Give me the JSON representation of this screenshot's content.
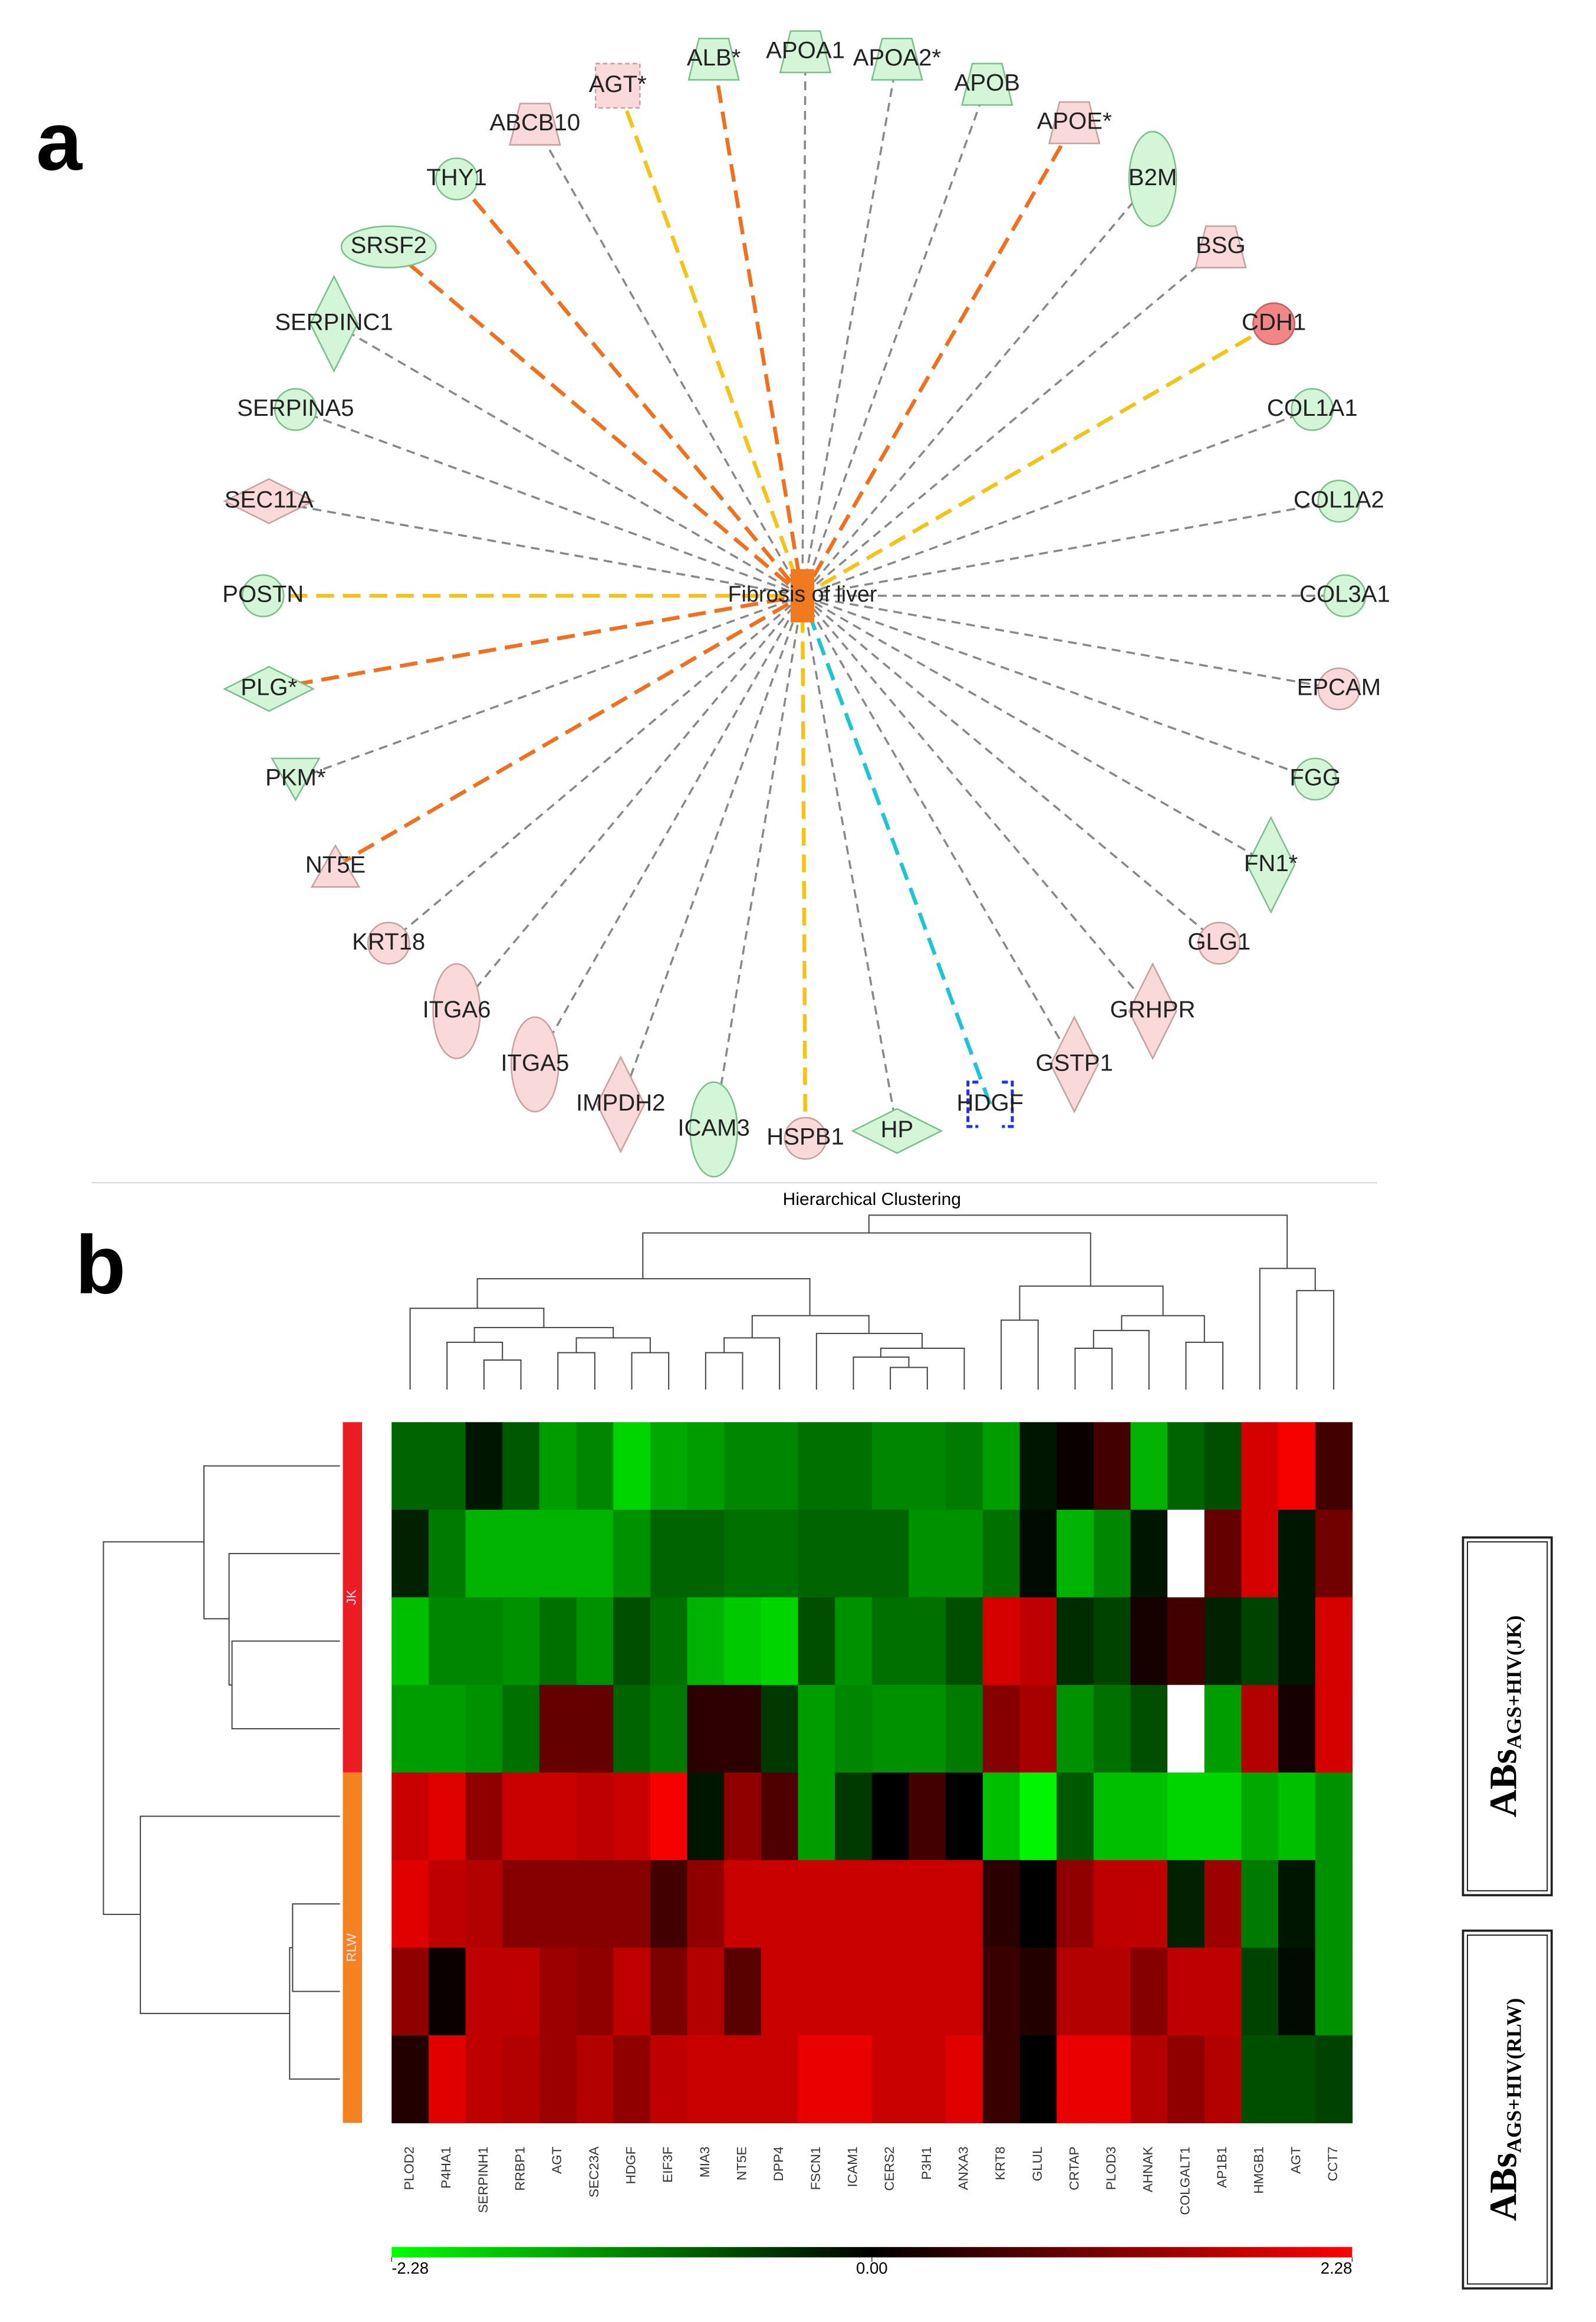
{
  "panel_a": {
    "label": "a",
    "center": "Fibrosis of liver",
    "nodes": [
      {
        "label": "AGT*",
        "shape": "square-dashed",
        "fill": "pink",
        "edge": "yellow"
      },
      {
        "label": "ALB*",
        "shape": "trapezoid",
        "fill": "green",
        "edge": "orange"
      },
      {
        "label": "APOA1",
        "shape": "trapezoid",
        "fill": "green",
        "edge": "gray"
      },
      {
        "label": "APOA2*",
        "shape": "trapezoid",
        "fill": "green",
        "edge": "gray"
      },
      {
        "label": "APOB",
        "shape": "trapezoid",
        "fill": "green",
        "edge": "gray"
      },
      {
        "label": "APOE*",
        "shape": "trapezoid",
        "fill": "pink",
        "edge": "orange"
      },
      {
        "label": "B2M",
        "shape": "ellipse-v",
        "fill": "green",
        "edge": "gray"
      },
      {
        "label": "BSG",
        "shape": "trapezoid",
        "fill": "pink",
        "edge": "gray"
      },
      {
        "label": "CDH1",
        "shape": "circle",
        "fill": "red",
        "edge": "yellow"
      },
      {
        "label": "COL1A1",
        "shape": "circle",
        "fill": "green",
        "edge": "gray"
      },
      {
        "label": "COL1A2",
        "shape": "circle",
        "fill": "green",
        "edge": "gray"
      },
      {
        "label": "COL3A1",
        "shape": "circle",
        "fill": "green",
        "edge": "gray"
      },
      {
        "label": "EPCAM",
        "shape": "circle",
        "fill": "pink",
        "edge": "gray"
      },
      {
        "label": "FGG",
        "shape": "circle",
        "fill": "green",
        "edge": "gray"
      },
      {
        "label": "FN1*",
        "shape": "diamond-v",
        "fill": "green",
        "edge": "gray"
      },
      {
        "label": "GLG1",
        "shape": "circle",
        "fill": "pink",
        "edge": "gray"
      },
      {
        "label": "GRHPR",
        "shape": "diamond-v",
        "fill": "pink",
        "edge": "gray"
      },
      {
        "label": "GSTP1",
        "shape": "diamond-v",
        "fill": "pink",
        "edge": "gray"
      },
      {
        "label": "HDGF",
        "shape": "square-blue",
        "fill": "none",
        "edge": "cyan"
      },
      {
        "label": "HP",
        "shape": "diamond-h",
        "fill": "green",
        "edge": "gray"
      },
      {
        "label": "HSPB1",
        "shape": "circle",
        "fill": "pink",
        "edge": "yellow"
      },
      {
        "label": "ICAM3",
        "shape": "ellipse-v",
        "fill": "green",
        "edge": "gray"
      },
      {
        "label": "IMPDH2",
        "shape": "diamond-v",
        "fill": "pink",
        "edge": "gray"
      },
      {
        "label": "ITGA5",
        "shape": "ellipse-v",
        "fill": "pink",
        "edge": "gray"
      },
      {
        "label": "ITGA6",
        "shape": "ellipse-v",
        "fill": "pink",
        "edge": "gray"
      },
      {
        "label": "KRT18",
        "shape": "circle",
        "fill": "pink",
        "edge": "gray"
      },
      {
        "label": "NT5E",
        "shape": "triangle",
        "fill": "pink",
        "edge": "orange"
      },
      {
        "label": "PKM*",
        "shape": "triangle-down",
        "fill": "green",
        "edge": "gray"
      },
      {
        "label": "PLG*",
        "shape": "diamond-h",
        "fill": "green",
        "edge": "orange"
      },
      {
        "label": "POSTN",
        "shape": "circle",
        "fill": "green",
        "edge": "yellow"
      },
      {
        "label": "SEC11A",
        "shape": "diamond-h",
        "fill": "pink",
        "edge": "gray"
      },
      {
        "label": "SERPINA5",
        "shape": "circle",
        "fill": "green",
        "edge": "gray"
      },
      {
        "label": "SERPINC1",
        "shape": "diamond-v",
        "fill": "green",
        "edge": "gray"
      },
      {
        "label": "SRSF2",
        "shape": "ellipse-h",
        "fill": "green",
        "edge": "orange"
      },
      {
        "label": "THY1",
        "shape": "circle",
        "fill": "green",
        "edge": "orange"
      },
      {
        "label": "ABCB10",
        "shape": "trapezoid",
        "fill": "pink",
        "edge": "gray"
      }
    ]
  },
  "chart_data": {
    "type": "heatmap",
    "panel_label": "b",
    "title": "Hierarchical Clustering",
    "categories": [
      "PLOD2",
      "P4HA1",
      "SERPINH1",
      "RRBP1",
      "AGT",
      "SEC23A",
      "HDGF",
      "EIF3F",
      "MIA3",
      "NT5E",
      "DPP4",
      "FSCN1",
      "ICAM1",
      "CERS2",
      "P3H1",
      "ANXA3",
      "KRT8",
      "GLUL",
      "CRTAP",
      "PLOD3",
      "AHNAK",
      "COLGALT1",
      "AP1B1",
      "HMGB1",
      "AGT",
      "CCT7"
    ],
    "groups": [
      {
        "name": "JK",
        "color": "#ec1c24"
      },
      {
        "name": "RLW",
        "color": "#f58220"
      }
    ],
    "values": [
      [
        -0.9,
        -0.9,
        -0.2,
        -0.8,
        -1.4,
        -1.2,
        -1.9,
        -1.5,
        -1.4,
        -1.2,
        -1.2,
        -1.0,
        -1.0,
        -1.2,
        -1.2,
        -1.1,
        -1.4,
        -0.2,
        0.1,
        0.6,
        -1.6,
        -0.9,
        -0.7,
        1.9,
        2.2,
        0.6
      ],
      [
        -0.3,
        -1.1,
        -1.6,
        -1.6,
        -1.6,
        -1.6,
        -1.3,
        -0.9,
        -0.9,
        -1.0,
        -1.0,
        -0.9,
        -0.9,
        -0.9,
        -1.3,
        -1.3,
        -1.0,
        -0.1,
        -1.6,
        -1.2,
        -0.2,
        null,
        0.9,
        1.9,
        -0.2,
        1.0
      ],
      [
        -1.7,
        -1.2,
        -1.2,
        -1.3,
        -1.0,
        -1.3,
        -0.7,
        -1.0,
        -1.6,
        -1.8,
        -1.9,
        -0.7,
        -1.3,
        -1.0,
        -1.0,
        -0.7,
        1.9,
        1.7,
        -0.4,
        -0.6,
        0.2,
        0.6,
        -0.3,
        -0.6,
        -0.2,
        1.9
      ],
      [
        -1.4,
        -1.4,
        -1.3,
        -1.0,
        0.9,
        0.9,
        -0.9,
        -1.1,
        0.4,
        0.4,
        -0.5,
        -1.4,
        -1.2,
        -1.3,
        -1.3,
        -1.1,
        1.2,
        1.5,
        -1.3,
        -1.0,
        -0.7,
        null,
        -1.4,
        1.6,
        0.2,
        1.9
      ],
      [
        1.8,
        2.0,
        1.3,
        1.8,
        1.8,
        1.7,
        1.8,
        2.2,
        -0.2,
        1.3,
        0.7,
        -1.4,
        -0.5,
        0.0,
        0.6,
        0.0,
        -1.7,
        -2.2,
        -0.8,
        -1.7,
        -1.7,
        -1.9,
        -1.9,
        -1.5,
        -1.7,
        -1.3
      ],
      [
        2.0,
        1.7,
        1.6,
        1.2,
        1.2,
        1.2,
        1.2,
        0.6,
        1.3,
        1.8,
        1.8,
        1.8,
        1.8,
        1.8,
        1.8,
        1.8,
        0.4,
        0.0,
        1.3,
        1.7,
        1.7,
        -0.3,
        1.4,
        -1.1,
        -0.2,
        -1.3
      ],
      [
        1.3,
        0.1,
        1.7,
        1.7,
        1.4,
        1.3,
        1.7,
        1.1,
        1.6,
        0.8,
        1.8,
        1.8,
        1.8,
        1.8,
        1.8,
        1.8,
        0.5,
        0.3,
        1.6,
        1.6,
        1.2,
        1.7,
        1.7,
        -0.6,
        -0.1,
        -1.3
      ],
      [
        0.3,
        2.0,
        1.7,
        1.6,
        1.4,
        1.6,
        1.3,
        1.7,
        1.8,
        1.8,
        1.8,
        2.1,
        2.1,
        1.8,
        1.8,
        2.0,
        0.5,
        0.0,
        2.1,
        2.1,
        1.6,
        1.3,
        1.6,
        -0.7,
        -0.7,
        -0.6
      ]
    ],
    "colorbar": {
      "lim": [
        -2.28,
        2.28
      ],
      "ticks": [
        -2.28,
        {
          "value": 0,
          "label": "0.00"
        },
        2.28
      ]
    },
    "side_labels": [
      {
        "main": "ABs",
        "sub": "AGS+HIV(JK)"
      },
      {
        "main": "ABs",
        "sub": "AGS+HIV(RLW)"
      }
    ]
  }
}
